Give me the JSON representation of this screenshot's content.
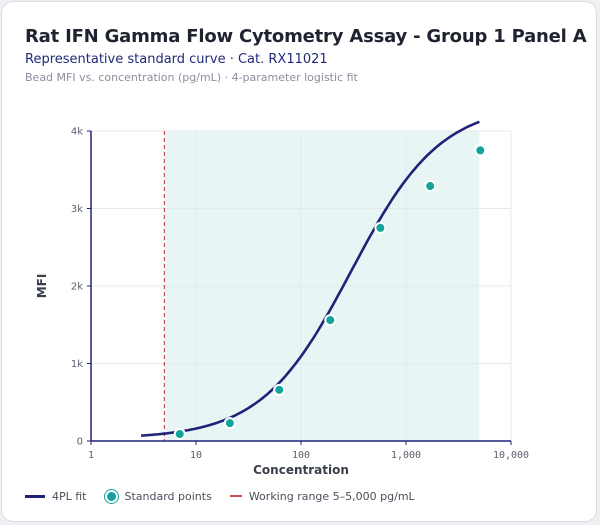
{
  "header": {
    "title": "Rat IFN Gamma Flow Cytometry Assay - Group 1 Panel A",
    "subtitle": "Representative standard curve · Cat. RX11021",
    "caption": "Bead MFI vs. concentration (pg/mL) · 4-parameter logistic fit"
  },
  "legend": {
    "fit_label": "4PL fit",
    "points_label": "Standard points",
    "range_label": "Working range 5–5,000 pg/mL"
  },
  "colors": {
    "curve": "#1f2378",
    "points": "#12a39a",
    "range_fill": "#e7f6f5",
    "lod_line": "#d04a55",
    "grid": "#e6e8ee",
    "axis": "#1f2378"
  },
  "chart_data": {
    "type": "scatter",
    "xscale": "log",
    "xlabel": "Concentration",
    "ylabel": "MFI",
    "xlim": [
      1,
      10000
    ],
    "ylim": [
      0,
      4000
    ],
    "x_ticks": [
      1,
      10,
      100,
      1000,
      10000
    ],
    "x_tick_labels": [
      "1",
      "10",
      "100",
      "1,000",
      "10,000"
    ],
    "y_ticks": [
      0,
      1000,
      2000,
      3000,
      4000
    ],
    "y_tick_labels": [
      "0",
      "1k",
      "2k",
      "3k",
      "4k"
    ],
    "grid": true,
    "legend_position": "bottom",
    "working_range": [
      5,
      5000
    ],
    "lod_line_x": 5,
    "fit": {
      "name": "4PL fit",
      "model": "4PL",
      "bottom": 30,
      "top": 4350,
      "ec50": 300,
      "hill": 1.02,
      "x_range": [
        3,
        5000
      ]
    },
    "series": [
      {
        "name": "Standard points",
        "x": [
          7,
          21,
          62,
          190,
          570,
          1700,
          5100
        ],
        "y": [
          90,
          230,
          660,
          1560,
          2750,
          3290,
          3750
        ]
      }
    ]
  }
}
